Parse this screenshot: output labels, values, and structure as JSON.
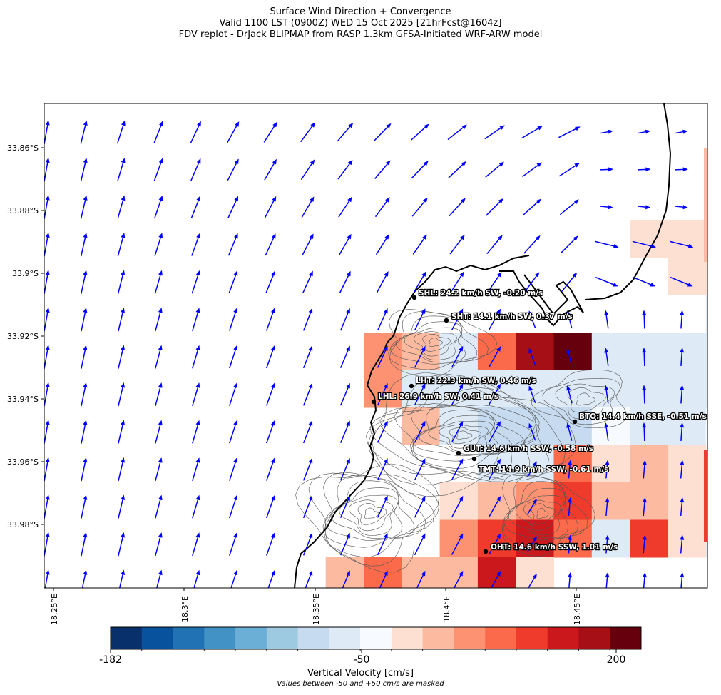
{
  "title": {
    "line1": "Surface Wind Direction + Convergence",
    "line2": "Valid 1100 LST (0900Z) WED 15 Oct 2025 [21hrFcst@1604z]",
    "line3": "FDV replot - DrJack BLIPMAP from RASP 1.3km GFSA-Initiated WRF-ARW model"
  },
  "lat_labels": [
    "33.86°S",
    "33.88°S",
    "33.9°S",
    "33.92°S",
    "33.94°S",
    "33.96°S",
    "33.98°S"
  ],
  "lon_labels": [
    "18.25°E",
    "18.3°E",
    "18.35°E",
    "18.4°E",
    "18.45°E"
  ],
  "stations": [
    {
      "id": "SHL",
      "label": "SHL: 24.2 km/h SW, -0.20 m/s"
    },
    {
      "id": "SHT",
      "label": "SHT: 14.1 km/h SW, 0.37 m/s"
    },
    {
      "id": "LHT",
      "label": "LHT: 22.3 km/h SW, 0.46 m/s"
    },
    {
      "id": "LHL",
      "label": "LHL: 26.9 km/h SW, 0.41 m/s"
    },
    {
      "id": "BTO",
      "label": "BTO: 14.4 km/h SSE, -0.51 m/s"
    },
    {
      "id": "GUT",
      "label": "GUT: 14.6 km/h SSW, -0.58 m/s"
    },
    {
      "id": "TMT",
      "label": "TMT: 14.9 km/h SSW, -0.61 m/s"
    },
    {
      "id": "OHT",
      "label": "OHT: 14.6 km/h SSW, 1.01 m/s"
    }
  ],
  "colorbar": {
    "ticks": [
      "-182",
      "-50",
      "200"
    ],
    "label": "Vertical Velocity [cm/s]",
    "note": "Values between -50 and +50 cm/s are masked",
    "colormap": "RdBu_r",
    "colors": [
      "#08306b",
      "#08519c",
      "#2171b5",
      "#4292c6",
      "#6baed6",
      "#9ecae1",
      "#c6dbef",
      "#deebf7",
      "#f7fbff",
      "#fee0d2",
      "#fcbba1",
      "#fc9272",
      "#fb6a4a",
      "#ef3b2c",
      "#cb181d",
      "#a50f15",
      "#67000d"
    ]
  },
  "colors": {
    "wind_arrow": "#0000ff",
    "coastline": "#000000",
    "terrain_contour": "#555555",
    "station_marker": "#000000"
  }
}
